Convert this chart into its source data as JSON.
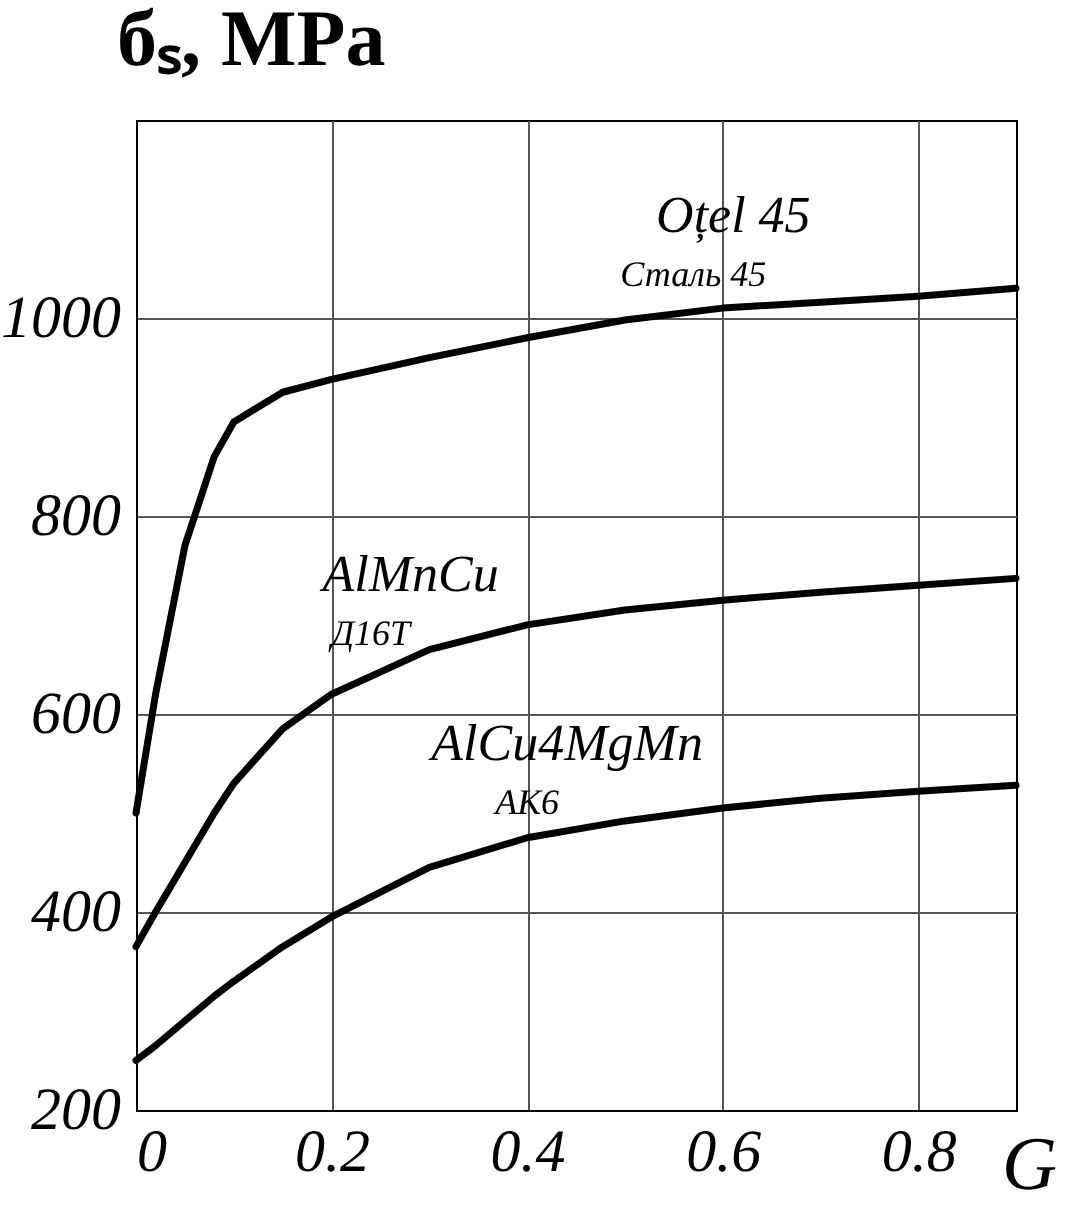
{
  "chart_data": {
    "type": "line",
    "xlabel": "G",
    "ylabel": "бₛ, MPa",
    "x": [
      0,
      0.02,
      0.05,
      0.08,
      0.1,
      0.15,
      0.2,
      0.3,
      0.4,
      0.5,
      0.6,
      0.7,
      0.8,
      0.9
    ],
    "series": [
      {
        "name": "Oțel 45",
        "color": "#000000",
        "values": [
          500,
          620,
          770,
          860,
          895,
          925,
          938,
          960,
          980,
          998,
          1010,
          1016,
          1022,
          1030
        ]
      },
      {
        "name": "AlMnCu",
        "color": "#000000",
        "values": [
          365,
          400,
          450,
          500,
          530,
          585,
          620,
          665,
          690,
          705,
          715,
          723,
          730,
          737
        ]
      },
      {
        "name": "AlCu4MgMn",
        "color": "#000000",
        "values": [
          250,
          265,
          290,
          315,
          330,
          365,
          395,
          445,
          475,
          492,
          505,
          515,
          522,
          528
        ]
      }
    ],
    "annotations": [
      {
        "text": "Сталь 45",
        "x": 0.57,
        "y": 1008
      },
      {
        "text": "Д16Т",
        "x": 0.24,
        "y": 645
      },
      {
        "text": "АК6",
        "x": 0.4,
        "y": 475
      }
    ],
    "xlim": [
      0,
      0.9
    ],
    "xticks": [
      {
        "value": 0,
        "label": "0"
      },
      0.2,
      0.4,
      0.6,
      0.8
    ],
    "ylim": [
      200,
      1200
    ],
    "yticks": [
      200,
      400,
      600,
      800,
      {
        "value": 1000,
        "label": "1000"
      }
    ],
    "grid": true,
    "line_style": "solid",
    "marker": "none"
  }
}
